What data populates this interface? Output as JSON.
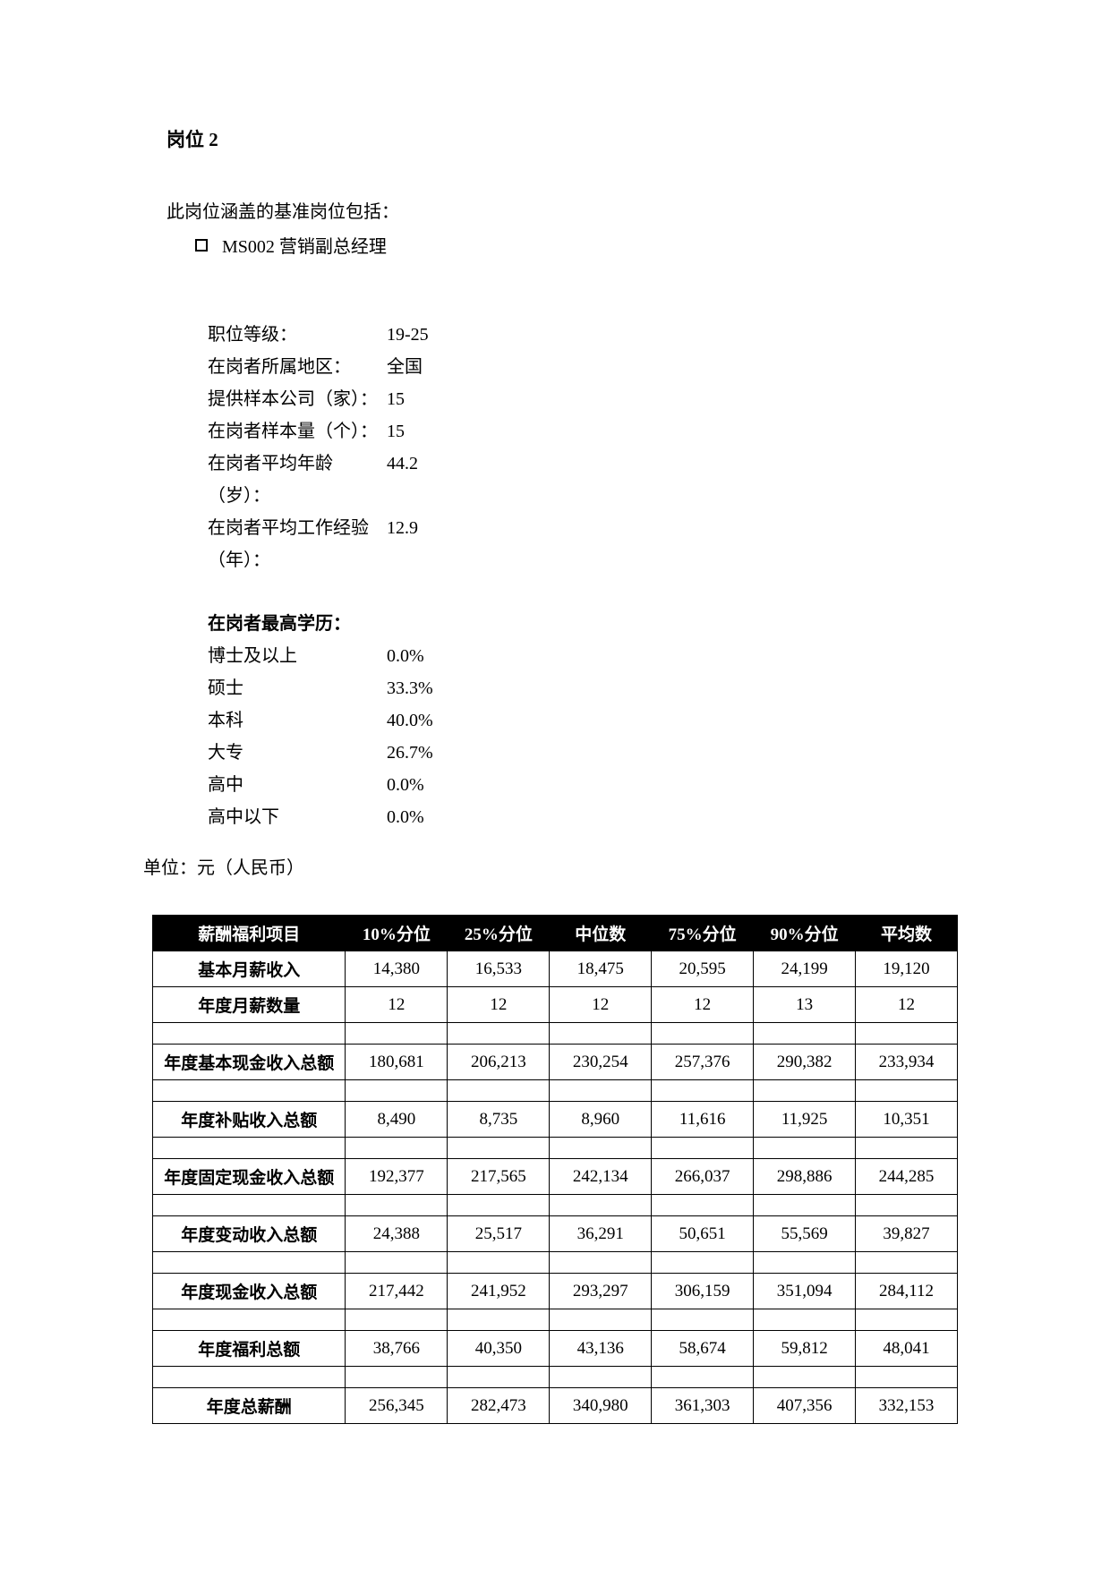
{
  "title": "岗位 2",
  "intro": "此岗位涵盖的基准岗位包括：",
  "bullet": "MS002  营销副总经理",
  "info": [
    {
      "label": "职位等级：",
      "value": "19-25"
    },
    {
      "label": "在岗者所属地区：",
      "value": "全国"
    },
    {
      "label": "提供样本公司（家）：",
      "value": "15"
    },
    {
      "label": "在岗者样本量（个）：",
      "value": "15"
    },
    {
      "label": "在岗者平均年龄（岁）：",
      "value": "44.2"
    },
    {
      "label": "在岗者平均工作经验（年）：",
      "value": "12.9"
    }
  ],
  "edu_title": "在岗者最高学历：",
  "edu": [
    {
      "label": "博士及以上",
      "value": "0.0%"
    },
    {
      "label": "硕士",
      "value": "33.3%"
    },
    {
      "label": "本科",
      "value": "40.0%"
    },
    {
      "label": "大专",
      "value": "26.7%"
    },
    {
      "label": "高中",
      "value": "0.0%"
    },
    {
      "label": "高中以下",
      "value": "0.0%"
    }
  ],
  "unit_label": "单位：元（人民币）",
  "table": {
    "headers": [
      "薪酬福利项目",
      "10%分位",
      "25%分位",
      "中位数",
      "75%分位",
      "90%分位",
      "平均数"
    ],
    "sections": [
      [
        {
          "label": "基本月薪收入",
          "cells": [
            "14,380",
            "16,533",
            "18,475",
            "20,595",
            "24,199",
            "19,120"
          ]
        },
        {
          "label": "年度月薪数量",
          "cells": [
            "12",
            "12",
            "12",
            "12",
            "13",
            "12"
          ]
        }
      ],
      [
        {
          "label": "年度基本现金收入总额",
          "cells": [
            "180,681",
            "206,213",
            "230,254",
            "257,376",
            "290,382",
            "233,934"
          ]
        }
      ],
      [
        {
          "label": "年度补贴收入总额",
          "cells": [
            "8,490",
            "8,735",
            "8,960",
            "11,616",
            "11,925",
            "10,351"
          ]
        }
      ],
      [
        {
          "label": "年度固定现金收入总额",
          "cells": [
            "192,377",
            "217,565",
            "242,134",
            "266,037",
            "298,886",
            "244,285"
          ]
        }
      ],
      [
        {
          "label": "年度变动收入总额",
          "cells": [
            "24,388",
            "25,517",
            "36,291",
            "50,651",
            "55,569",
            "39,827"
          ]
        }
      ],
      [
        {
          "label": "年度现金收入总额",
          "cells": [
            "217,442",
            "241,952",
            "293,297",
            "306,159",
            "351,094",
            "284,112"
          ]
        }
      ],
      [
        {
          "label": "年度福利总额",
          "cells": [
            "38,766",
            "40,350",
            "43,136",
            "58,674",
            "59,812",
            "48,041"
          ]
        }
      ],
      [
        {
          "label": "年度总薪酬",
          "cells": [
            "256,345",
            "282,473",
            "340,980",
            "361,303",
            "407,356",
            "332,153"
          ]
        }
      ]
    ]
  }
}
